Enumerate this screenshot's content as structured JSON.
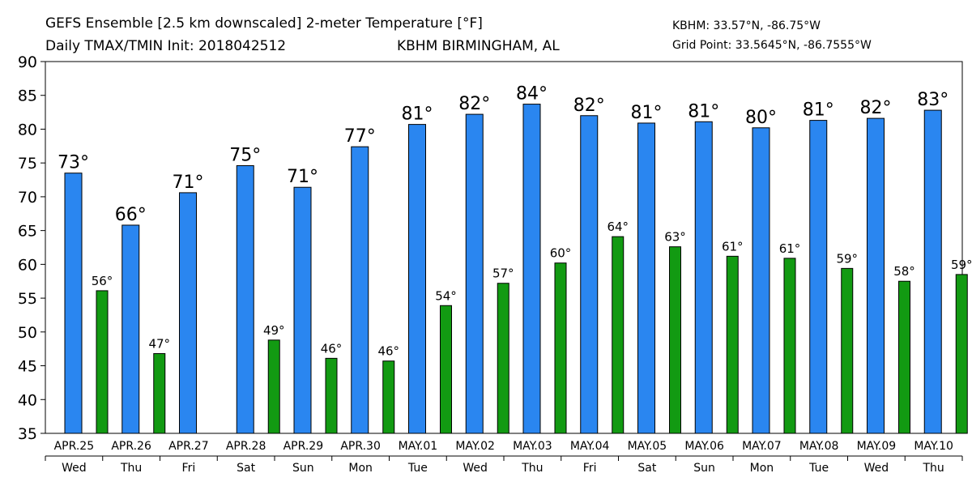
{
  "header": {
    "title_line1": "GEFS Ensemble [2.5 km downscaled] 2-meter Temperature [°F]",
    "title_line2": "Daily TMAX/TMIN Init: 2018042512",
    "location": "KBHM BIRMINGHAM, AL",
    "station_coords": "KBHM: 33.57°N, -86.75°W",
    "grid_point": "Grid Point: 33.5645°N, -86.7555°W"
  },
  "colors": {
    "tmax": "#2a86f0",
    "tmin": "#129a12",
    "location_text": "#2a4fe0"
  },
  "chart_data": {
    "type": "bar",
    "categories": [
      "APR.25",
      "APR.26",
      "APR.27",
      "APR.28",
      "APR.29",
      "APR.30",
      "MAY.01",
      "MAY.02",
      "MAY.03",
      "MAY.04",
      "MAY.05",
      "MAY.06",
      "MAY.07",
      "MAY.08",
      "MAY.09",
      "MAY.10"
    ],
    "weekdays": [
      "Wed",
      "Thu",
      "Fri",
      "Sat",
      "Sun",
      "Mon",
      "Tue",
      "Wed",
      "Thu",
      "Fri",
      "Sat",
      "Sun",
      "Mon",
      "Tue",
      "Wed",
      "Thu"
    ],
    "series": [
      {
        "key": "tmax",
        "values": [
          73.5,
          65.8,
          70.6,
          74.6,
          71.4,
          77.4,
          80.7,
          82.2,
          83.7,
          82.0,
          80.9,
          81.1,
          80.2,
          81.3,
          81.6,
          82.8
        ],
        "labels": [
          "73°",
          "66°",
          "71°",
          "75°",
          "71°",
          "77°",
          "81°",
          "82°",
          "84°",
          "82°",
          "81°",
          "81°",
          "80°",
          "81°",
          "82°",
          "83°"
        ]
      },
      {
        "key": "tmin",
        "values": [
          56.1,
          46.8,
          null,
          48.8,
          46.1,
          45.7,
          53.9,
          57.2,
          60.2,
          64.1,
          62.6,
          61.2,
          60.9,
          59.4,
          57.5,
          58.5
        ],
        "labels": [
          "56°",
          "47°",
          "",
          "49°",
          "46°",
          "46°",
          "54°",
          "57°",
          "60°",
          "64°",
          "63°",
          "61°",
          "61°",
          "59°",
          "58°",
          "59°"
        ]
      }
    ],
    "title": "GEFS Ensemble [2.5 km downscaled] 2-meter Temperature [°F]",
    "ylim": [
      35,
      90
    ],
    "yticks": [
      35,
      40,
      45,
      50,
      55,
      60,
      65,
      70,
      75,
      80,
      85,
      90
    ],
    "grid": false
  }
}
